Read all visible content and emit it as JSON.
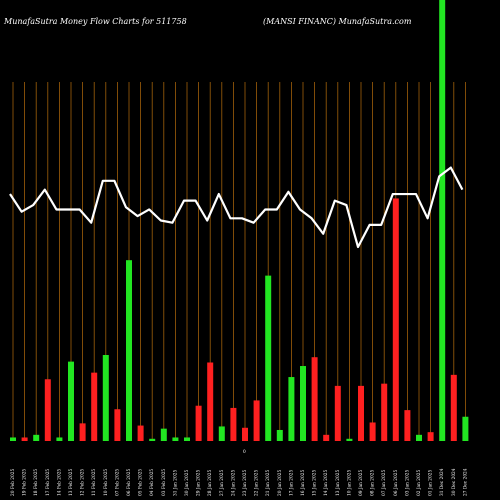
{
  "chart_data": {
    "type": "bar",
    "title_left": "MunafaSutra  Money Flow  Charts for 511758",
    "title_right": "(MANSI FINANC) MunafaSutra.com",
    "center_mark": "0",
    "ylim": [
      0,
      100
    ],
    "colors": {
      "up": "#22e622",
      "down": "#ff2020",
      "line": "#ffffff",
      "grid": "#a0600a",
      "background": "#000000"
    },
    "x_ticks": [
      "20 Feb 2025",
      "19 Feb 2025",
      "18 Feb 2025",
      "17 Feb 2025",
      "14 Feb 2025",
      "13 Feb 2025",
      "12 Feb 2025",
      "11 Feb 2025",
      "10 Feb 2025",
      "07 Feb 2025",
      "06 Feb 2025",
      "05 Feb 2025",
      "04 Feb 2025",
      "03 Feb 2025",
      "31 Jan 2025",
      "30 Jan 2025",
      "29 Jan 2025",
      "28 Jan 2025",
      "27 Jan 2025",
      "24 Jan 2025",
      "23 Jan 2025",
      "22 Jan 2025",
      "21 Jan 2025",
      "20 Jan 2025",
      "17 Jan 2025",
      "16 Jan 2025",
      "15 Jan 2025",
      "14 Jan 2025",
      "13 Jan 2025",
      "10 Jan 2025",
      "09 Jan 2025",
      "08 Jan 2025",
      "07 Jan 2025",
      "06 Jan 2025",
      "03 Jan 2025",
      "02 Jan 2025",
      "01 Jan 2025",
      "31 Dec 2024",
      "30 Dec 2024",
      "27 Dec 2024"
    ],
    "bars": [
      {
        "dir": "up",
        "value": 0.8
      },
      {
        "dir": "down",
        "value": 0.8
      },
      {
        "dir": "up",
        "value": 1.4
      },
      {
        "dir": "down",
        "value": 14
      },
      {
        "dir": "up",
        "value": 0.8
      },
      {
        "dir": "up",
        "value": 18
      },
      {
        "dir": "down",
        "value": 4
      },
      {
        "dir": "down",
        "value": 15.5
      },
      {
        "dir": "up",
        "value": 19.5
      },
      {
        "dir": "down",
        "value": 7.2
      },
      {
        "dir": "up",
        "value": 41
      },
      {
        "dir": "down",
        "value": 3.5
      },
      {
        "dir": "up",
        "value": 0.5
      },
      {
        "dir": "up",
        "value": 2.8
      },
      {
        "dir": "up",
        "value": 0.8
      },
      {
        "dir": "up",
        "value": 0.8
      },
      {
        "dir": "down",
        "value": 8
      },
      {
        "dir": "down",
        "value": 17.8
      },
      {
        "dir": "up",
        "value": 3.3
      },
      {
        "dir": "down",
        "value": 7.5
      },
      {
        "dir": "down",
        "value": 3
      },
      {
        "dir": "down",
        "value": 9.2
      },
      {
        "dir": "up",
        "value": 37.5
      },
      {
        "dir": "up",
        "value": 2.5
      },
      {
        "dir": "up",
        "value": 14.5
      },
      {
        "dir": "up",
        "value": 17
      },
      {
        "dir": "down",
        "value": 19
      },
      {
        "dir": "down",
        "value": 1.4
      },
      {
        "dir": "down",
        "value": 12.5
      },
      {
        "dir": "up",
        "value": 0.5
      },
      {
        "dir": "down",
        "value": 12.5
      },
      {
        "dir": "down",
        "value": 4.2
      },
      {
        "dir": "down",
        "value": 13
      },
      {
        "dir": "down",
        "value": 55
      },
      {
        "dir": "down",
        "value": 7
      },
      {
        "dir": "up",
        "value": 1.4
      },
      {
        "dir": "down",
        "value": 2
      },
      {
        "dir": "up",
        "value": 100
      },
      {
        "dir": "down",
        "value": 15
      },
      {
        "dir": "up",
        "value": 5.5
      }
    ],
    "line": [
      56,
      52,
      53.5,
      57,
      52.5,
      52.5,
      52.5,
      49.5,
      59,
      59,
      53,
      51,
      52.5,
      50,
      49.5,
      54.5,
      54.5,
      50,
      56,
      50.5,
      50.5,
      49.5,
      52.5,
      52.5,
      56.5,
      52.5,
      50.5,
      47,
      54.5,
      53.5,
      44,
      49,
      49,
      56,
      56,
      56,
      50.5,
      60,
      62,
      57
    ]
  }
}
